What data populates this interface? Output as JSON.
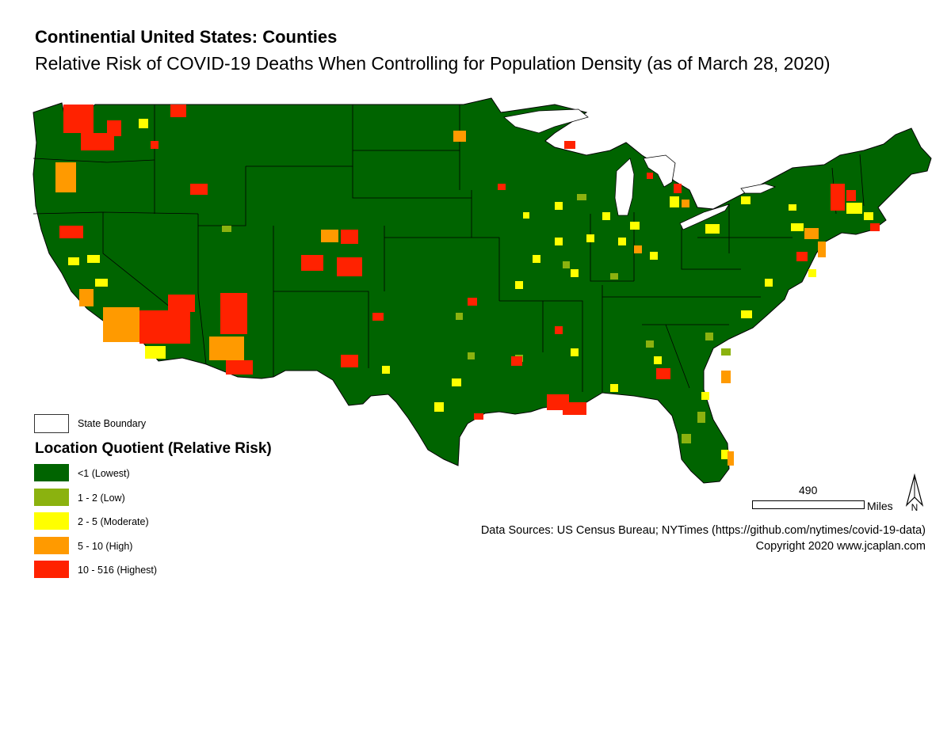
{
  "header": {
    "title": "Continential United States: Counties",
    "subtitle": "Relative Risk of COVID-19 Deaths When Controlling for Population Density (as of March 28, 2020)"
  },
  "legend": {
    "boundary_label": "State Boundary",
    "title": "Location Quotient (Relative Risk)",
    "classes": [
      {
        "label": "<1 (Lowest)",
        "color": "#006400"
      },
      {
        "label": "1 - 2 (Low)",
        "color": "#8BB20F"
      },
      {
        "label": "2 - 5 (Moderate)",
        "color": "#FFFF00"
      },
      {
        "label": "5 - 10 (High)",
        "color": "#FF9A00"
      },
      {
        "label": "10 - 516 (Highest)",
        "color": "#FF2200"
      }
    ]
  },
  "scale_bar": {
    "value": "490",
    "unit": "Miles"
  },
  "north_arrow": {
    "label": "N"
  },
  "credits": {
    "sources": "Data Sources: US Census Bureau; NYTimes (https://github.com/nytimes/covid-19-data)",
    "copyright": "Copyright 2020 www.jcaplan.com"
  },
  "map": {
    "base_color": "#006400",
    "boundary_color": "#000000",
    "water_color": "#ffffff"
  }
}
